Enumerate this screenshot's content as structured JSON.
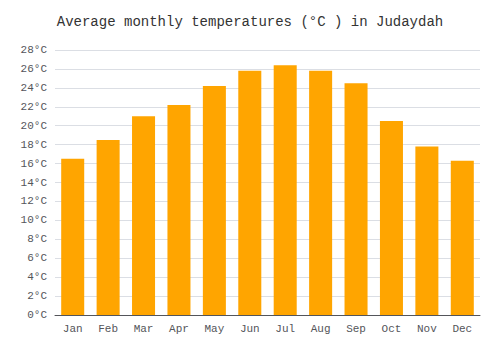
{
  "chart_data": {
    "type": "bar",
    "title": "Average monthly temperatures (°C ) in Judaydah",
    "categories": [
      "Jan",
      "Feb",
      "Mar",
      "Apr",
      "May",
      "Jun",
      "Jul",
      "Aug",
      "Sep",
      "Oct",
      "Nov",
      "Dec"
    ],
    "values": [
      16.5,
      18.5,
      21.0,
      22.2,
      24.2,
      25.8,
      26.4,
      25.8,
      24.5,
      20.5,
      17.8,
      16.3
    ],
    "color": "#FFA500",
    "ylim": [
      0,
      28
    ],
    "yticks": [
      {
        "value": 0,
        "label": "0°C"
      },
      {
        "value": 2,
        "label": "2°C"
      },
      {
        "value": 4,
        "label": "4°C"
      },
      {
        "value": 6,
        "label": "6°C"
      },
      {
        "value": 8,
        "label": "8°C"
      },
      {
        "value": 10,
        "label": "10°C"
      },
      {
        "value": 12,
        "label": "12°C"
      },
      {
        "value": 14,
        "label": "14°C"
      },
      {
        "value": 16,
        "label": "16°C"
      },
      {
        "value": 18,
        "label": "18°C"
      },
      {
        "value": 20,
        "label": "20°C"
      },
      {
        "value": 22,
        "label": "22°C"
      },
      {
        "value": 24,
        "label": "24°C"
      },
      {
        "value": 26,
        "label": "26°C"
      },
      {
        "value": 28,
        "label": "28°C"
      }
    ],
    "grid": true
  }
}
